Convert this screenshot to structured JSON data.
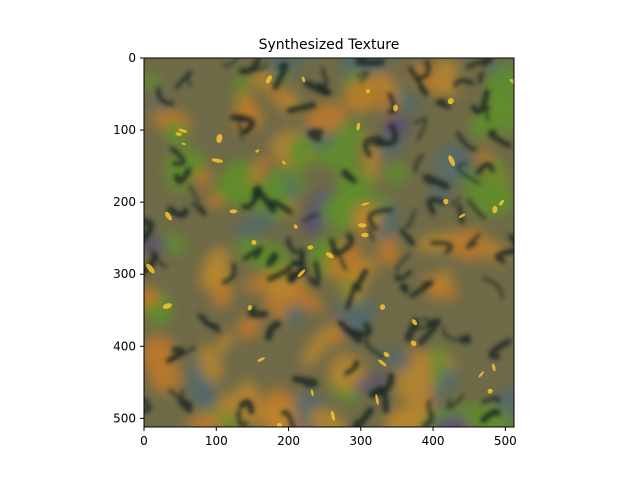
{
  "chart_data": {
    "type": "heatmap",
    "title": "Synthesized Texture",
    "xlabel": "",
    "ylabel": "",
    "image_size": [
      512,
      512
    ],
    "xlim": [
      0,
      512
    ],
    "ylim": [
      512,
      0
    ],
    "x_ticks": [
      0,
      100,
      200,
      300,
      400,
      500
    ],
    "y_ticks": [
      0,
      100,
      200,
      300,
      400,
      500
    ],
    "grid": false,
    "colors": {
      "base": "#6f6a48",
      "orange": "#c07a2a",
      "amber": "#b8862e",
      "green": "#5f8f2a",
      "dark": "#1e2a26",
      "slate": "#4f6a6e",
      "yellow": "#f0c030",
      "purple": "#5a4a78"
    }
  }
}
